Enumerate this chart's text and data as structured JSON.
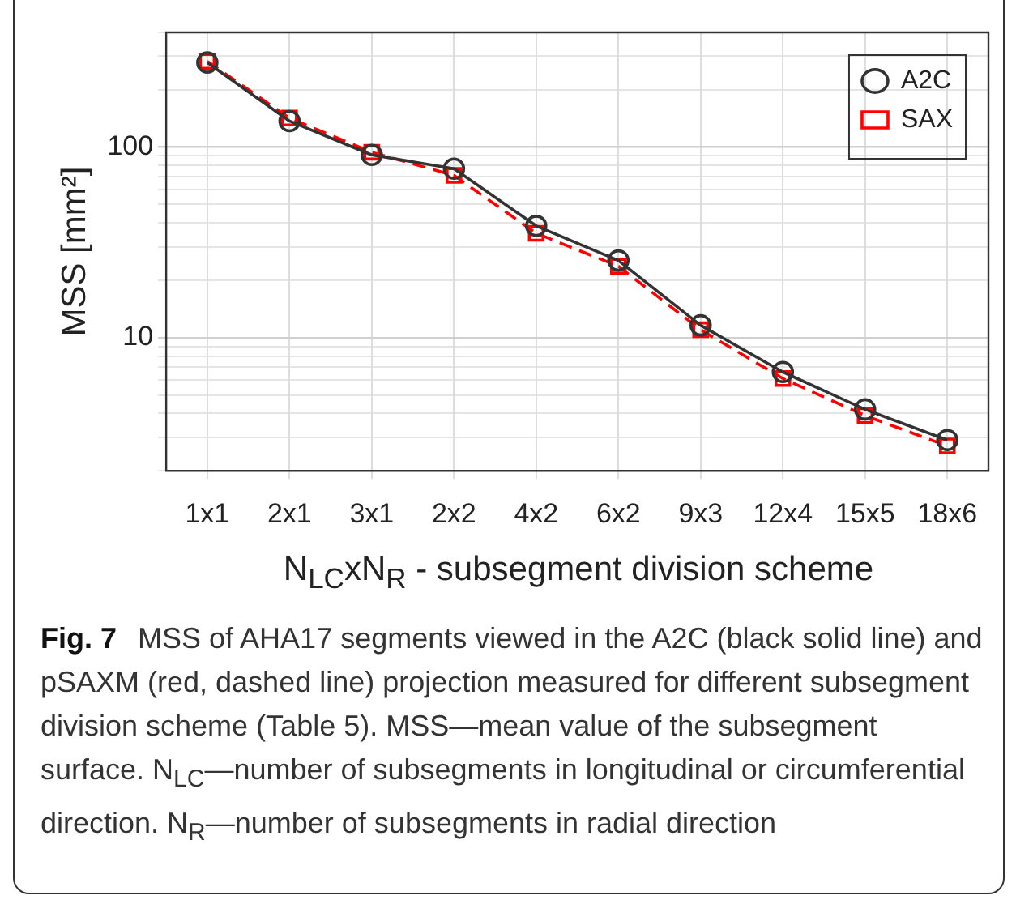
{
  "chart_data": {
    "type": "line",
    "xlabel": "N$_{LC}$xN$_{R}$ - subsegment division scheme",
    "ylabel": "MSS [mm²]",
    "categories": [
      "1x1",
      "2x1",
      "3x1",
      "2x2",
      "4x2",
      "6x2",
      "9x3",
      "12x4",
      "15x5",
      "18x6"
    ],
    "series": [
      {
        "name": "A2C",
        "color": "#333333",
        "marker": "circle",
        "line_style": "solid",
        "values": [
          278,
          137,
          91,
          77,
          38.6,
          25.4,
          11.6,
          6.6,
          4.2,
          2.9
        ]
      },
      {
        "name": "SAX",
        "color": "#ff0000",
        "marker": "square",
        "line_style": "dashed",
        "values": [
          282,
          142,
          94,
          71,
          35.3,
          23.7,
          11.0,
          6.1,
          3.9,
          2.7
        ]
      }
    ],
    "log": "y",
    "ylim": [
      2,
      400
    ],
    "yticks": [
      {
        "value": 2,
        "label": null
      },
      {
        "value": 3,
        "label": null
      },
      {
        "value": 4,
        "label": null
      },
      {
        "value": 5,
        "label": null
      },
      {
        "value": 6,
        "label": null
      },
      {
        "value": 7,
        "label": null
      },
      {
        "value": 8,
        "label": null
      },
      {
        "value": 9,
        "label": null
      },
      10,
      {
        "value": 20,
        "label": null
      },
      {
        "value": 30,
        "label": null
      },
      {
        "value": 40,
        "label": null
      },
      {
        "value": 50,
        "label": null
      },
      {
        "value": 60,
        "label": null
      },
      {
        "value": 70,
        "label": null
      },
      {
        "value": 80,
        "label": null
      },
      {
        "value": 90,
        "label": null
      },
      100,
      {
        "value": 200,
        "label": null
      },
      {
        "value": 300,
        "label": null
      },
      {
        "value": 400,
        "label": null
      }
    ],
    "grid": true,
    "legend": "top right",
    "annotations": [
      "Fig. 7",
      "MSS of AHA17 segments viewed in the A2C (black solid line) and pSAXM (red, dashed line) projection measured for different subsegment division scheme (Table 5). MSS—mean value of the subsegment surface. N$_{LC}$—number of subsegments in longitudinal or circumferential direction. N$_{R}$—number of subsegments in radial direction"
    ]
  }
}
